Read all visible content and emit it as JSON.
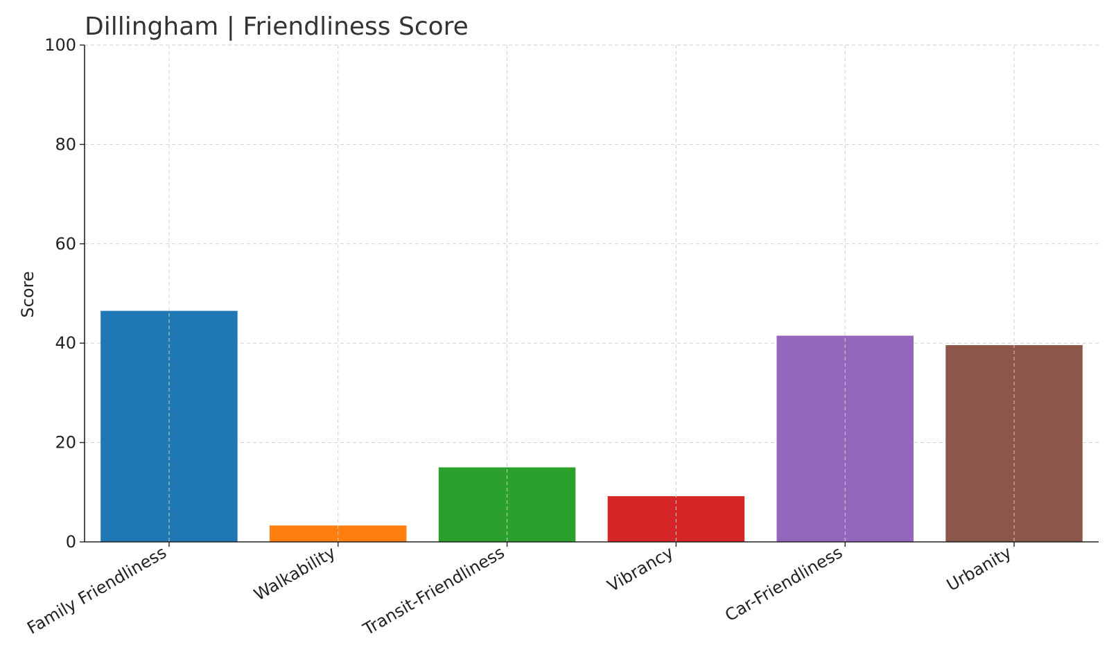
{
  "chart_data": {
    "type": "bar",
    "title": "Dillingham | Friendliness Score",
    "xlabel": "",
    "ylabel": "Score",
    "ylim": [
      0,
      100
    ],
    "yticks": [
      0,
      20,
      40,
      60,
      80,
      100
    ],
    "grid": true,
    "categories": [
      "Family Friendliness",
      "Walkability",
      "Transit-Friendliness",
      "Vibrancy",
      "Car-Friendliness",
      "Urbanity"
    ],
    "values": [
      46.5,
      3.3,
      15.0,
      9.2,
      41.5,
      39.6
    ],
    "colors": [
      "#1f77b4",
      "#ff7f0e",
      "#2ca02c",
      "#d62728",
      "#9467bd",
      "#8c564b"
    ]
  }
}
